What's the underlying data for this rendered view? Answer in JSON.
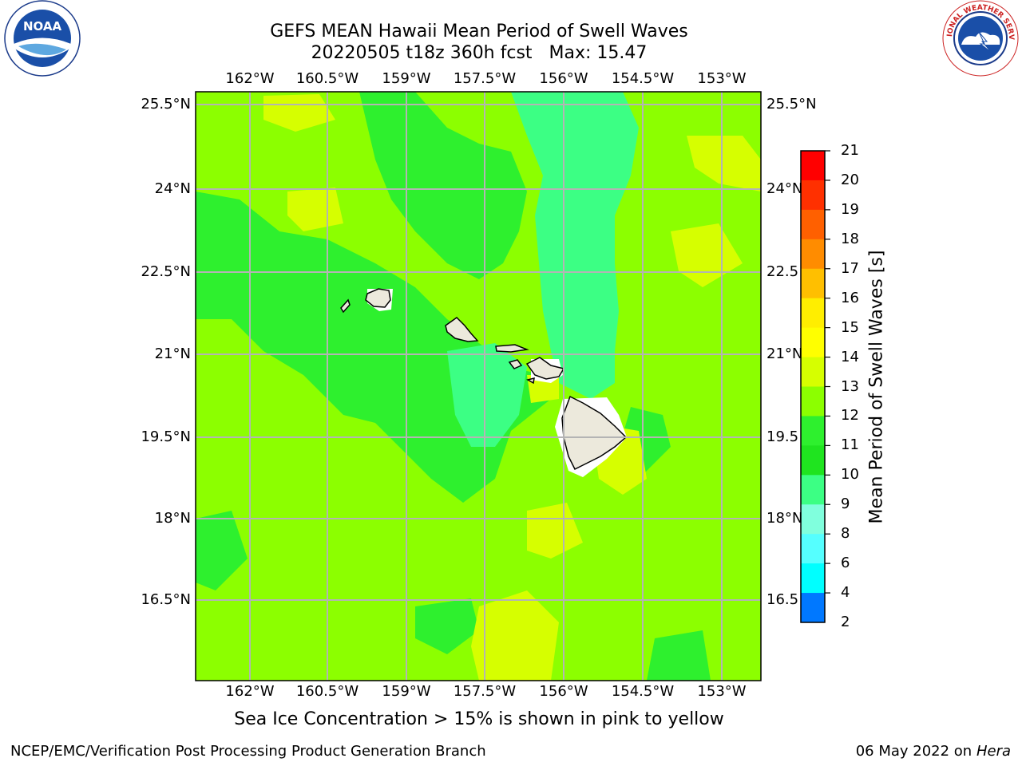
{
  "title": {
    "line1": "GEFS MEAN Hawaii Mean Period of Swell Waves",
    "line2_date": "20220505 t18z 360h fcst",
    "line2_max": "Max: 15.47"
  },
  "map": {
    "lon_ticks": [
      "162°W",
      "160.5°W",
      "159°W",
      "157.5°W",
      "156°W",
      "154.5°W",
      "153°W"
    ],
    "lat_ticks_left": [
      "25.5°N",
      "24°N",
      "22.5°N",
      "21°N",
      "19.5°N",
      "18°N",
      "16.5°N"
    ],
    "lat_ticks_right": [
      "25.5°N",
      "24°N",
      "22.5",
      "21°N",
      "19.5",
      "18°N",
      "16.5"
    ],
    "fill_colors": {
      "ocean_base": "#8cff00",
      "green_mid": "#2ef02e",
      "green_dark": "#1fe41f",
      "teal": "#3cff84",
      "yellow_green": "#d6ff00",
      "land": "#ece9dc",
      "grid": "#b4b4b4"
    }
  },
  "colorbar": {
    "title": "Mean Period of Swell Waves [s]",
    "labels": [
      "21",
      "20",
      "19",
      "18",
      "17",
      "16",
      "15",
      "14",
      "13",
      "12",
      "11",
      "10",
      "9",
      "8",
      "6",
      "4",
      "2"
    ],
    "colors": [
      "#ff0000",
      "#ff3000",
      "#ff6000",
      "#ff8c00",
      "#ffbf00",
      "#ffee00",
      "#ffff00",
      "#d6ff00",
      "#8cff00",
      "#2ef02e",
      "#1fe41f",
      "#3cff84",
      "#80ffdd",
      "#55ffff",
      "#00ffff",
      "#0078ff",
      "#0000ff"
    ]
  },
  "note": "Sea Ice Concentration > 15% is shown in pink to yellow",
  "footer": {
    "left": "NCEP/EMC/Verification Post Processing Product Generation Branch",
    "right_date": "06 May 2022 on",
    "right_host": "Hera"
  },
  "logos": {
    "noaa_text": "NOAA",
    "nws_text": "NATIONAL WEATHER SERVICE"
  }
}
